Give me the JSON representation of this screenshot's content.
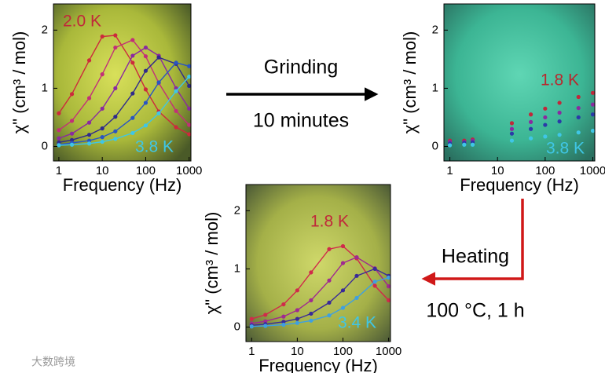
{
  "chart_data": [
    {
      "type": "line",
      "markers": true,
      "xscale": "log",
      "xlabel": "Frequency (Hz)",
      "ylabel": "χ\" (cm³ / mol)",
      "xlim": [
        0.75,
        1100
      ],
      "xticks": [
        1,
        10,
        100,
        1000
      ],
      "ylim": [
        -0.25,
        2.45
      ],
      "yticks": [
        0,
        1,
        2
      ],
      "annotations": [
        {
          "text": "2.0 K",
          "color": "#c0283a"
        },
        {
          "text": "3.8 K",
          "color": "#3fc6e6"
        }
      ],
      "x": [
        1,
        2,
        5,
        10,
        20,
        50,
        100,
        200,
        500,
        1000
      ],
      "series": [
        {
          "color": "#cc2a3c",
          "values": [
            0.57,
            0.9,
            1.48,
            1.89,
            1.91,
            1.44,
            0.98,
            0.6,
            0.33,
            0.21
          ]
        },
        {
          "color": "#c22f78",
          "values": [
            0.28,
            0.44,
            0.83,
            1.24,
            1.7,
            1.83,
            1.55,
            1.09,
            0.61,
            0.37
          ]
        },
        {
          "color": "#8a2aa0",
          "values": [
            0.14,
            0.22,
            0.41,
            0.65,
            1.0,
            1.56,
            1.7,
            1.56,
            1.0,
            0.65
          ]
        },
        {
          "color": "#302a8c",
          "values": [
            0.07,
            0.11,
            0.2,
            0.31,
            0.51,
            0.91,
            1.3,
            1.53,
            1.42,
            1.04
          ]
        },
        {
          "color": "#2a55c2",
          "values": [
            0.03,
            0.06,
            0.1,
            0.16,
            0.26,
            0.49,
            0.75,
            1.1,
            1.44,
            1.38
          ]
        },
        {
          "color": "#3fc6e6",
          "values": [
            0.02,
            0.03,
            0.05,
            0.08,
            0.13,
            0.23,
            0.36,
            0.57,
            0.95,
            1.2
          ]
        }
      ]
    },
    {
      "type": "scatter",
      "xscale": "log",
      "xlabel": "Frequency (Hz)",
      "ylabel": "χ\" (cm³ / mol)",
      "xlim": [
        0.75,
        1100
      ],
      "xticks": [
        1,
        10,
        100,
        1000
      ],
      "ylim": [
        -0.25,
        2.45
      ],
      "yticks": [
        0,
        1,
        2
      ],
      "annotations": [
        {
          "text": "1.8 K",
          "color": "#b8282e"
        },
        {
          "text": "3.8 K",
          "color": "#3fc6e6"
        }
      ],
      "x": [
        1,
        2,
        3,
        20,
        50,
        100,
        200,
        500,
        1000
      ],
      "series": [
        {
          "color": "#c0283a",
          "values": [
            0.1,
            0.1,
            0.12,
            0.4,
            0.55,
            0.65,
            0.75,
            0.85,
            0.92
          ]
        },
        {
          "color": "#8a2aa0",
          "values": [
            0.08,
            0.08,
            0.1,
            0.3,
            0.42,
            0.5,
            0.58,
            0.66,
            0.72
          ]
        },
        {
          "color": "#2a3aa8",
          "values": [
            0.05,
            0.06,
            0.07,
            0.22,
            0.3,
            0.37,
            0.43,
            0.5,
            0.55
          ]
        },
        {
          "color": "#3fc6e6",
          "values": [
            0.02,
            0.03,
            0.03,
            0.1,
            0.14,
            0.17,
            0.2,
            0.24,
            0.27
          ]
        }
      ]
    },
    {
      "type": "line",
      "markers": true,
      "xscale": "log",
      "xlabel": "Frequency (Hz)",
      "ylabel": "χ\" (cm³ / mol)",
      "xlim": [
        0.75,
        1100
      ],
      "xticks": [
        1,
        10,
        100,
        1000
      ],
      "ylim": [
        -0.25,
        2.45
      ],
      "yticks": [
        0,
        1,
        2
      ],
      "annotations": [
        {
          "text": "1.8 K",
          "color": "#c0283a"
        },
        {
          "text": "3.4 K",
          "color": "#3fc6e6"
        }
      ],
      "x": [
        1,
        2,
        5,
        10,
        20,
        50,
        100,
        200,
        500,
        1000
      ],
      "series": [
        {
          "color": "#d02a4a",
          "values": [
            0.14,
            0.21,
            0.39,
            0.63,
            0.94,
            1.34,
            1.39,
            1.18,
            0.71,
            0.46
          ]
        },
        {
          "color": "#a02a90",
          "values": [
            0.06,
            0.1,
            0.18,
            0.29,
            0.46,
            0.8,
            1.1,
            1.2,
            1.01,
            0.7
          ]
        },
        {
          "color": "#3a2a98",
          "values": [
            0.03,
            0.05,
            0.09,
            0.14,
            0.23,
            0.42,
            0.63,
            0.88,
            1.0,
            0.88
          ]
        },
        {
          "color": "#3fa0e0",
          "values": [
            0.01,
            0.02,
            0.04,
            0.07,
            0.11,
            0.2,
            0.33,
            0.5,
            0.78,
            0.85
          ]
        }
      ]
    }
  ],
  "arrows": [
    {
      "label": "Grinding",
      "sublabel": "10 minutes"
    },
    {
      "label": "Heating",
      "sublabel": "100 °C, 1 h"
    }
  ],
  "watermark": "大数跨境"
}
